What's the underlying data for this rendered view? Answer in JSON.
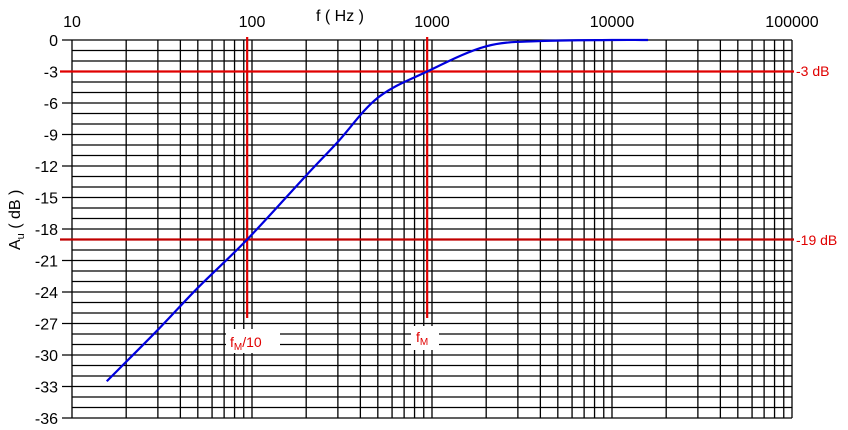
{
  "chart_data": {
    "type": "line",
    "title": "",
    "xlabel": "f ( Hz )",
    "ylabel": "Au ( dB )",
    "ylabel_main": "A",
    "ylabel_sub": "u",
    "ylabel_rest": " ( dB )",
    "xscale": "log",
    "xlim": [
      10,
      100000
    ],
    "ylim": [
      -36,
      0
    ],
    "x_tick_labels": [
      "10",
      "100",
      "1000",
      "10000",
      "100000"
    ],
    "x_ticks": [
      10,
      100,
      1000,
      10000,
      100000
    ],
    "y_ticks": [
      0,
      -3,
      -6,
      -9,
      -12,
      -15,
      -18,
      -21,
      -24,
      -27,
      -30,
      -33,
      -36
    ],
    "y_tick_labels": [
      "0",
      "-3",
      "-6",
      "-9",
      "-12",
      "-15",
      "-18",
      "-21",
      "-24",
      "-27",
      "-30",
      "-33",
      "-36"
    ],
    "grid": true,
    "series": [
      {
        "name": "Au",
        "color": "#0000dd",
        "x": [
          15.6,
          30,
          50,
          94,
          200,
          300,
          500,
          940,
          2000,
          4000,
          10000,
          15850
        ],
        "y": [
          -32.5,
          -27.6,
          -23.6,
          -19,
          -12.9,
          -9.7,
          -5.5,
          -3,
          -0.6,
          -0.1,
          0,
          0
        ]
      }
    ],
    "reference_lines": {
      "horizontal": [
        {
          "value": -3,
          "label": "-3 dB",
          "color": "#e00000"
        },
        {
          "value": -19,
          "label": "-19 dB",
          "color": "#c00000"
        }
      ],
      "vertical": [
        {
          "value": 94,
          "label_main": "f",
          "label_sub": "M",
          "label_rest": "/10",
          "color": "#e00000"
        },
        {
          "value": 940,
          "label_main": "f",
          "label_sub": "M",
          "label_rest": "",
          "color": "#e00000"
        }
      ]
    }
  }
}
